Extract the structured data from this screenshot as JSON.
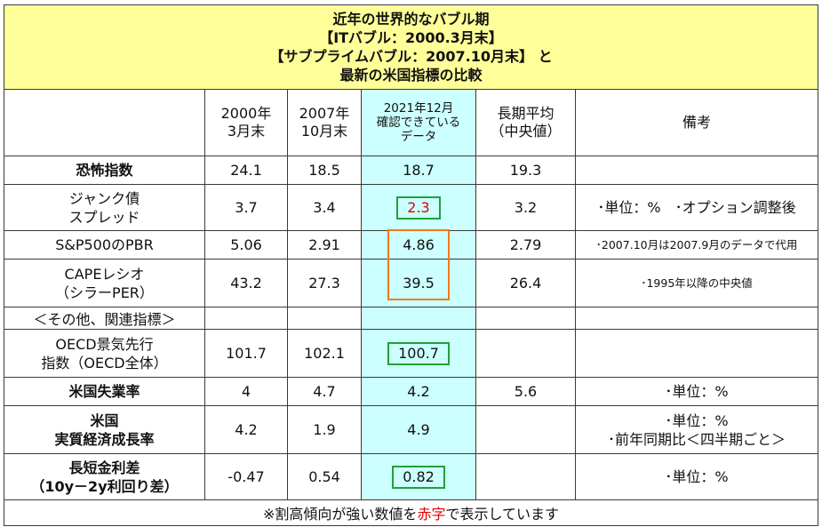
{
  "title": {
    "line1": "近年の世界的なバブル期",
    "line2": "【ITバブル：2000.3月末】",
    "line3": "【サブプライムバブル：2007.10月末】 と",
    "line4": "最新の米国指標の比較"
  },
  "header": {
    "c1_line1": "2000年",
    "c1_line2": "3月末",
    "c2_line1": "2007年",
    "c2_line2": "10月末",
    "c3_line1": "2021年12月",
    "c3_line2": "確認できている",
    "c3_line3": "データ",
    "c4_line1": "長期平均",
    "c4_line2": "（中央値）",
    "c5": "備考"
  },
  "rows": [
    {
      "label1": "恐怖指数",
      "label2": "",
      "v2000": "24.1",
      "v2007": "18.5",
      "v2021": "18.7",
      "avg": "19.3",
      "note1": "",
      "note2": ""
    },
    {
      "label1": "ジャンク債",
      "label2": "スプレッド",
      "v2000": "3.7",
      "v2007": "3.4",
      "v2021": "2.3",
      "avg": "3.2",
      "note1": "･単位：%　･オプション調整後",
      "note2": ""
    },
    {
      "label1": "S&P500のPBR",
      "label2": "",
      "v2000": "5.06",
      "v2007": "2.91",
      "v2021": "4.86",
      "avg": "2.79",
      "note1": "･2007.10月は2007.9月のデータで代用",
      "note2": ""
    },
    {
      "label1": "CAPEレシオ",
      "label2": "（シラーPER）",
      "v2000": "43.2",
      "v2007": "27.3",
      "v2021": "39.5",
      "avg": "26.4",
      "note1": "･1995年以降の中央値",
      "note2": ""
    },
    {
      "label1": "OECD景気先行",
      "label2": "指数（OECD全体）",
      "v2000": "101.7",
      "v2007": "102.1",
      "v2021": "100.7",
      "avg": "",
      "note1": "",
      "note2": ""
    },
    {
      "label1": "米国失業率",
      "label2": "",
      "v2000": "4",
      "v2007": "4.7",
      "v2021": "4.2",
      "avg": "5.6",
      "note1": "･単位：%",
      "note2": ""
    },
    {
      "label1": "米国",
      "label2": "実質経済成長率",
      "v2000": "4.2",
      "v2007": "1.9",
      "v2021": "4.9",
      "avg": "",
      "note1": "･単位：%",
      "note2": "･前年同期比＜四半期ごと＞"
    },
    {
      "label1": "長短金利差",
      "label2": "（10y－2y利回り差）",
      "v2000": "-0.47",
      "v2007": "0.54",
      "v2021": "0.82",
      "avg": "",
      "note1": "･単位：%",
      "note2": ""
    }
  ],
  "subheader": "＜その他、関連指標＞",
  "footer": {
    "prefix": "※割高傾向が強い数値を",
    "red_word": "赤字",
    "suffix": "で表示しています"
  },
  "colors": {
    "title_bg": "#ffff99",
    "highlight_col_bg": "#ccffff",
    "red": "#e00000",
    "green": "#1a7a1a",
    "box_green": "#22a03a",
    "box_orange": "#f07a1a",
    "subheader_blue": "#2255cc"
  }
}
